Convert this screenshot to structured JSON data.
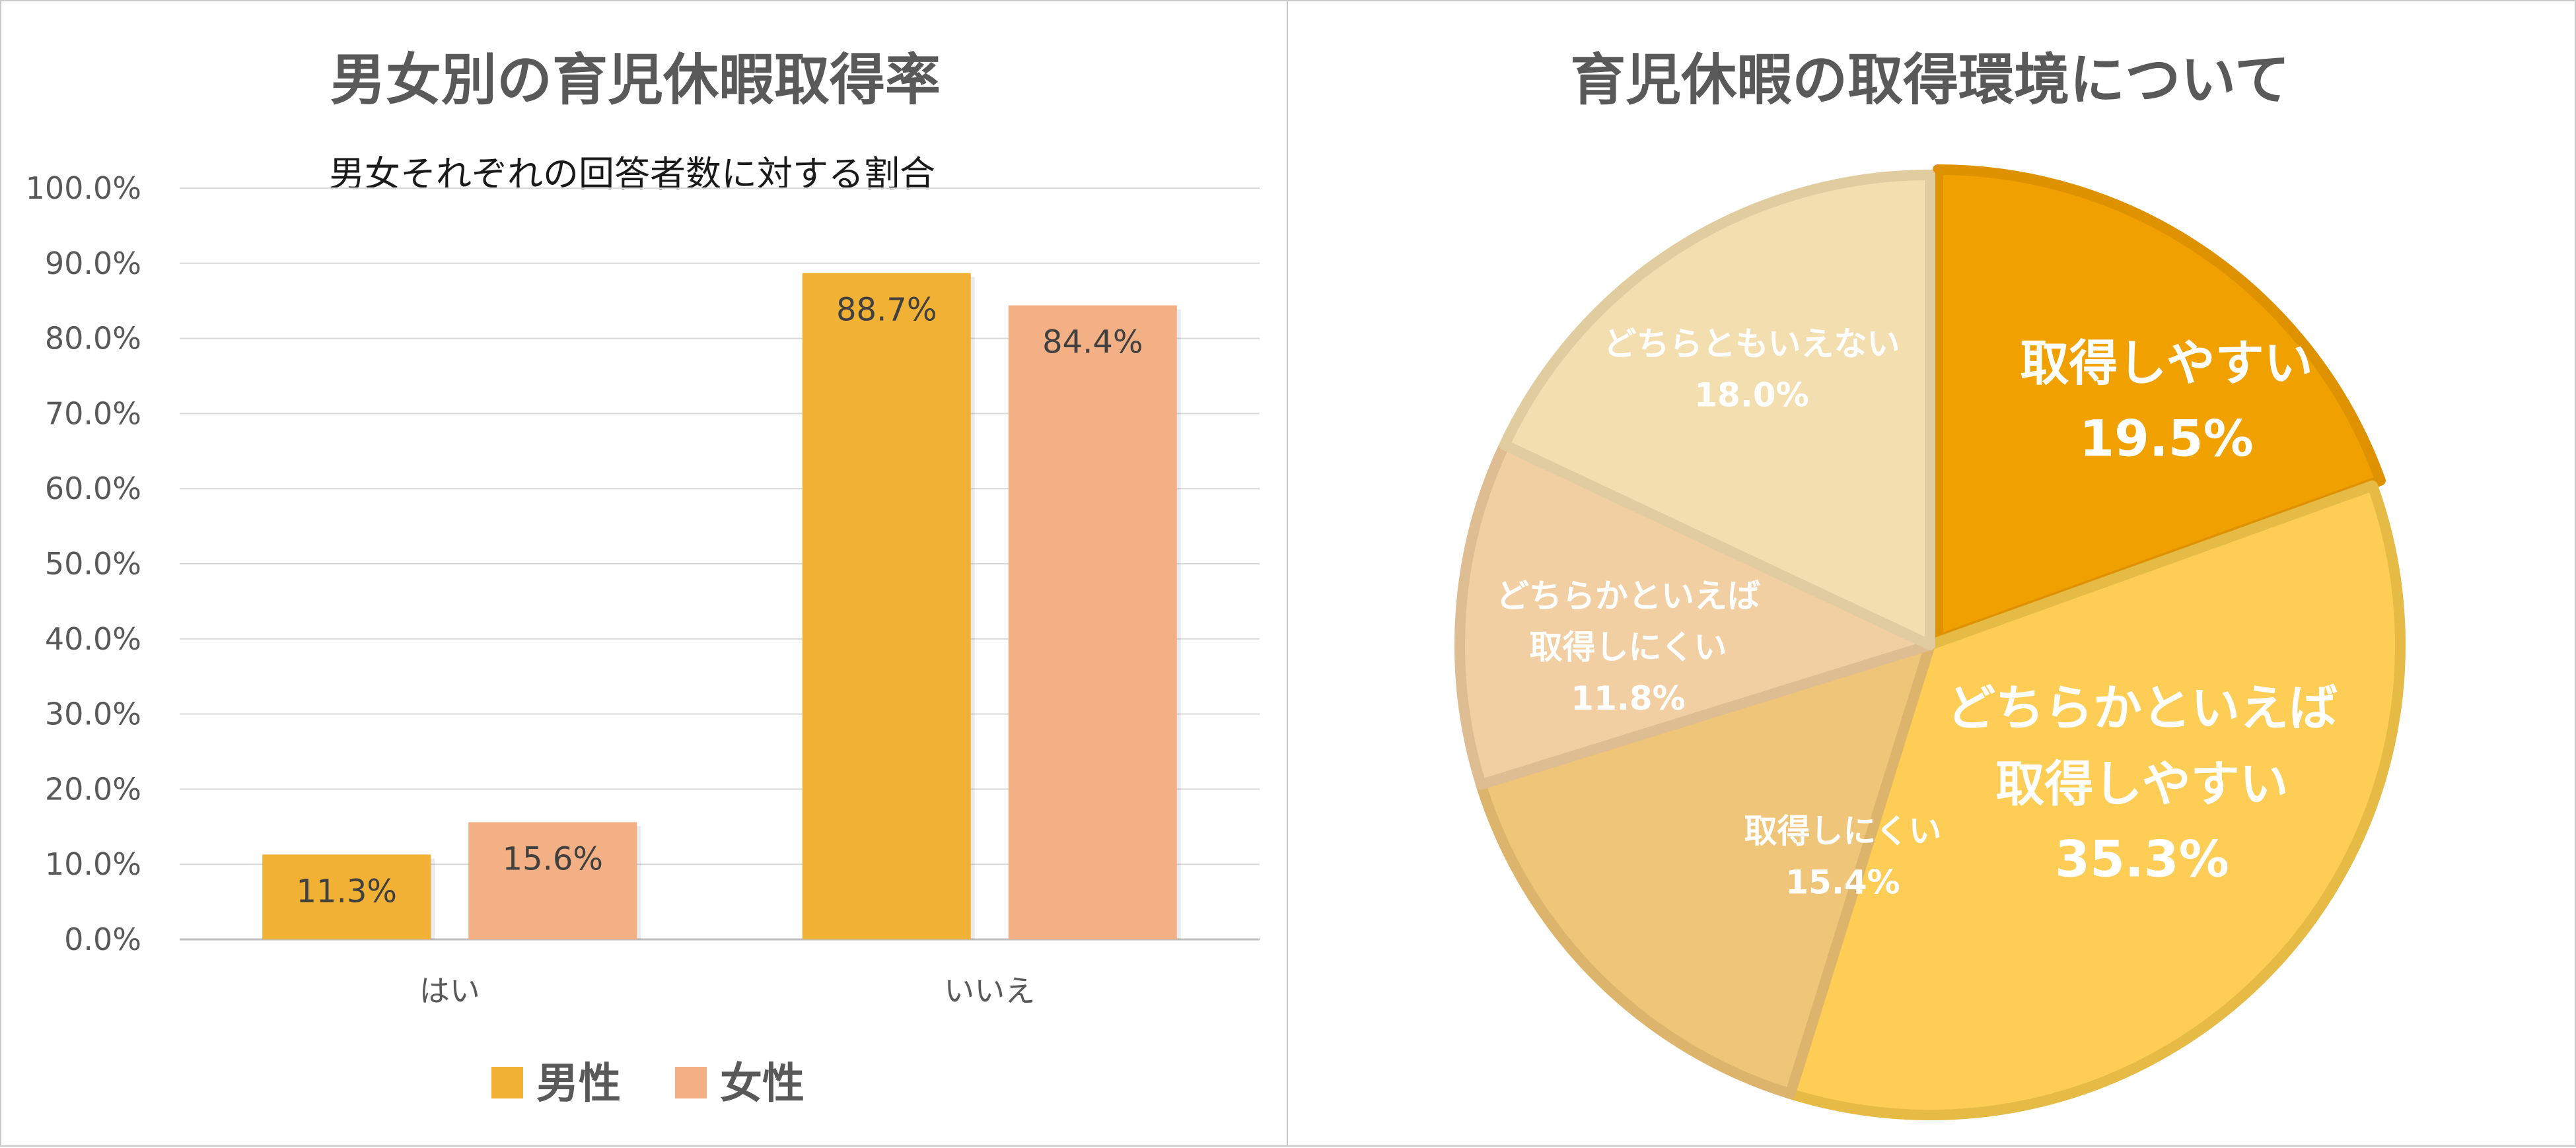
{
  "chart_data": [
    {
      "type": "bar",
      "title": "男女別の育児休暇取得率",
      "subtitle": "男女それぞれの回答者数に対する割合",
      "categories": [
        "はい",
        "いいえ"
      ],
      "series": [
        {
          "name": "男性",
          "values": [
            11.3,
            88.7
          ],
          "labels": [
            "11.3%",
            "88.7%"
          ],
          "color": "#f1b134"
        },
        {
          "name": "女性",
          "values": [
            15.6,
            84.4
          ],
          "labels": [
            "15.6%",
            "84.4%"
          ],
          "color": "#f3b084"
        }
      ],
      "ylim": [
        0,
        100
      ],
      "yticks": [
        "0.0%",
        "10.0%",
        "20.0%",
        "30.0%",
        "40.0%",
        "50.0%",
        "60.0%",
        "70.0%",
        "80.0%",
        "90.0%",
        "100.0%"
      ],
      "grid": true,
      "legend": "bottom"
    },
    {
      "type": "pie",
      "title": "育児休暇の取得環境について",
      "slices": [
        {
          "label_lines": [
            "取得しやすい",
            "19.5%"
          ],
          "value": 19.5,
          "color": "#f0a100",
          "stroke": "#df9200",
          "size": "large"
        },
        {
          "label_lines": [
            "どちらかといえば",
            "取得しやすい",
            "35.3%"
          ],
          "value": 35.3,
          "color": "#fecd55",
          "stroke": "#e5bb45",
          "size": "large"
        },
        {
          "label_lines": [
            "取得しにくい",
            "15.4%"
          ],
          "value": 15.4,
          "color": "#efc679",
          "stroke": "#dcb46c",
          "size": "small"
        },
        {
          "label_lines": [
            "どちらかといえば",
            "取得しにくい",
            "11.8%"
          ],
          "value": 11.8,
          "color": "#f1cfa3",
          "stroke": "#dfbd92",
          "size": "small"
        },
        {
          "label_lines": [
            "どちらともいえない",
            "18.0%"
          ],
          "value": 18.0,
          "color": "#f3deaf",
          "stroke": "#e0cc9e",
          "size": "small"
        }
      ]
    }
  ]
}
